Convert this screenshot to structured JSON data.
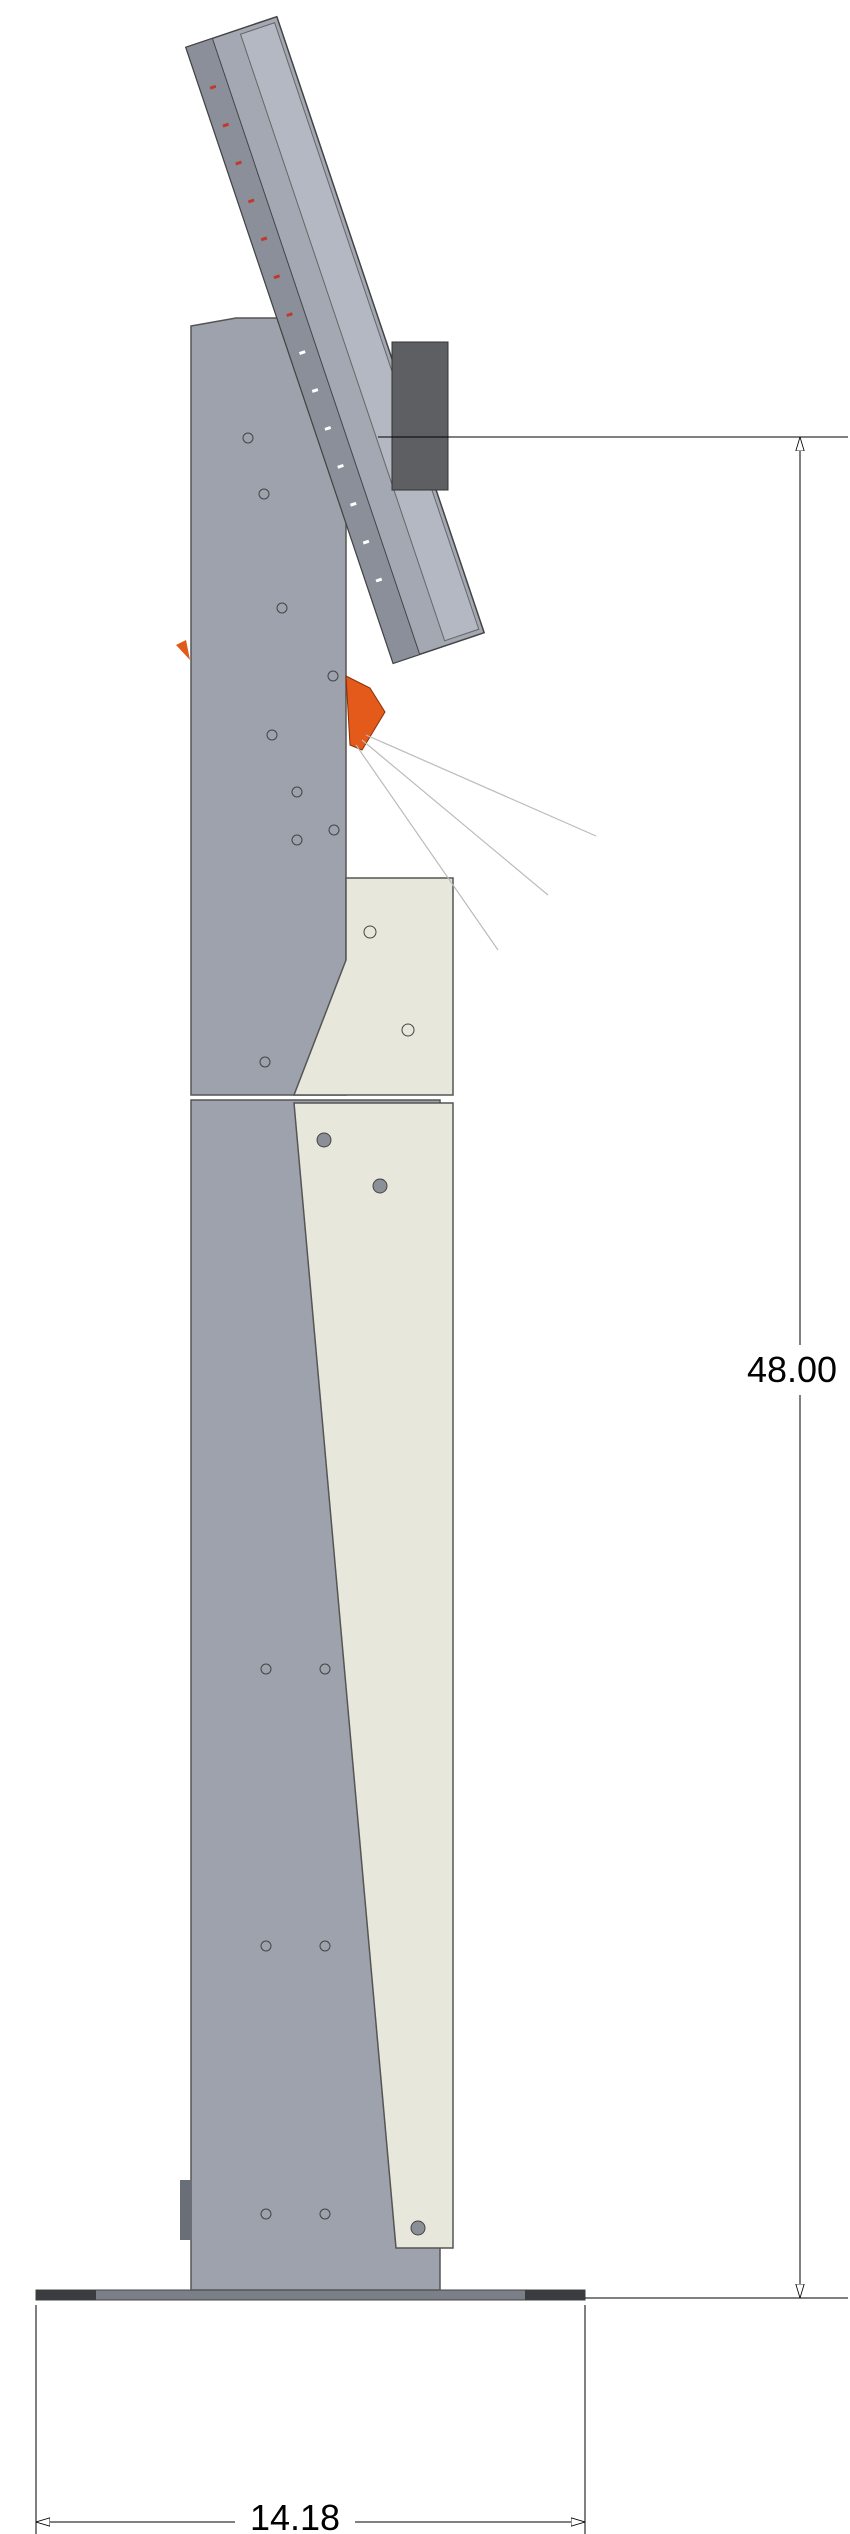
{
  "dimensions": {
    "height": "48.00",
    "width": "14.18"
  }
}
